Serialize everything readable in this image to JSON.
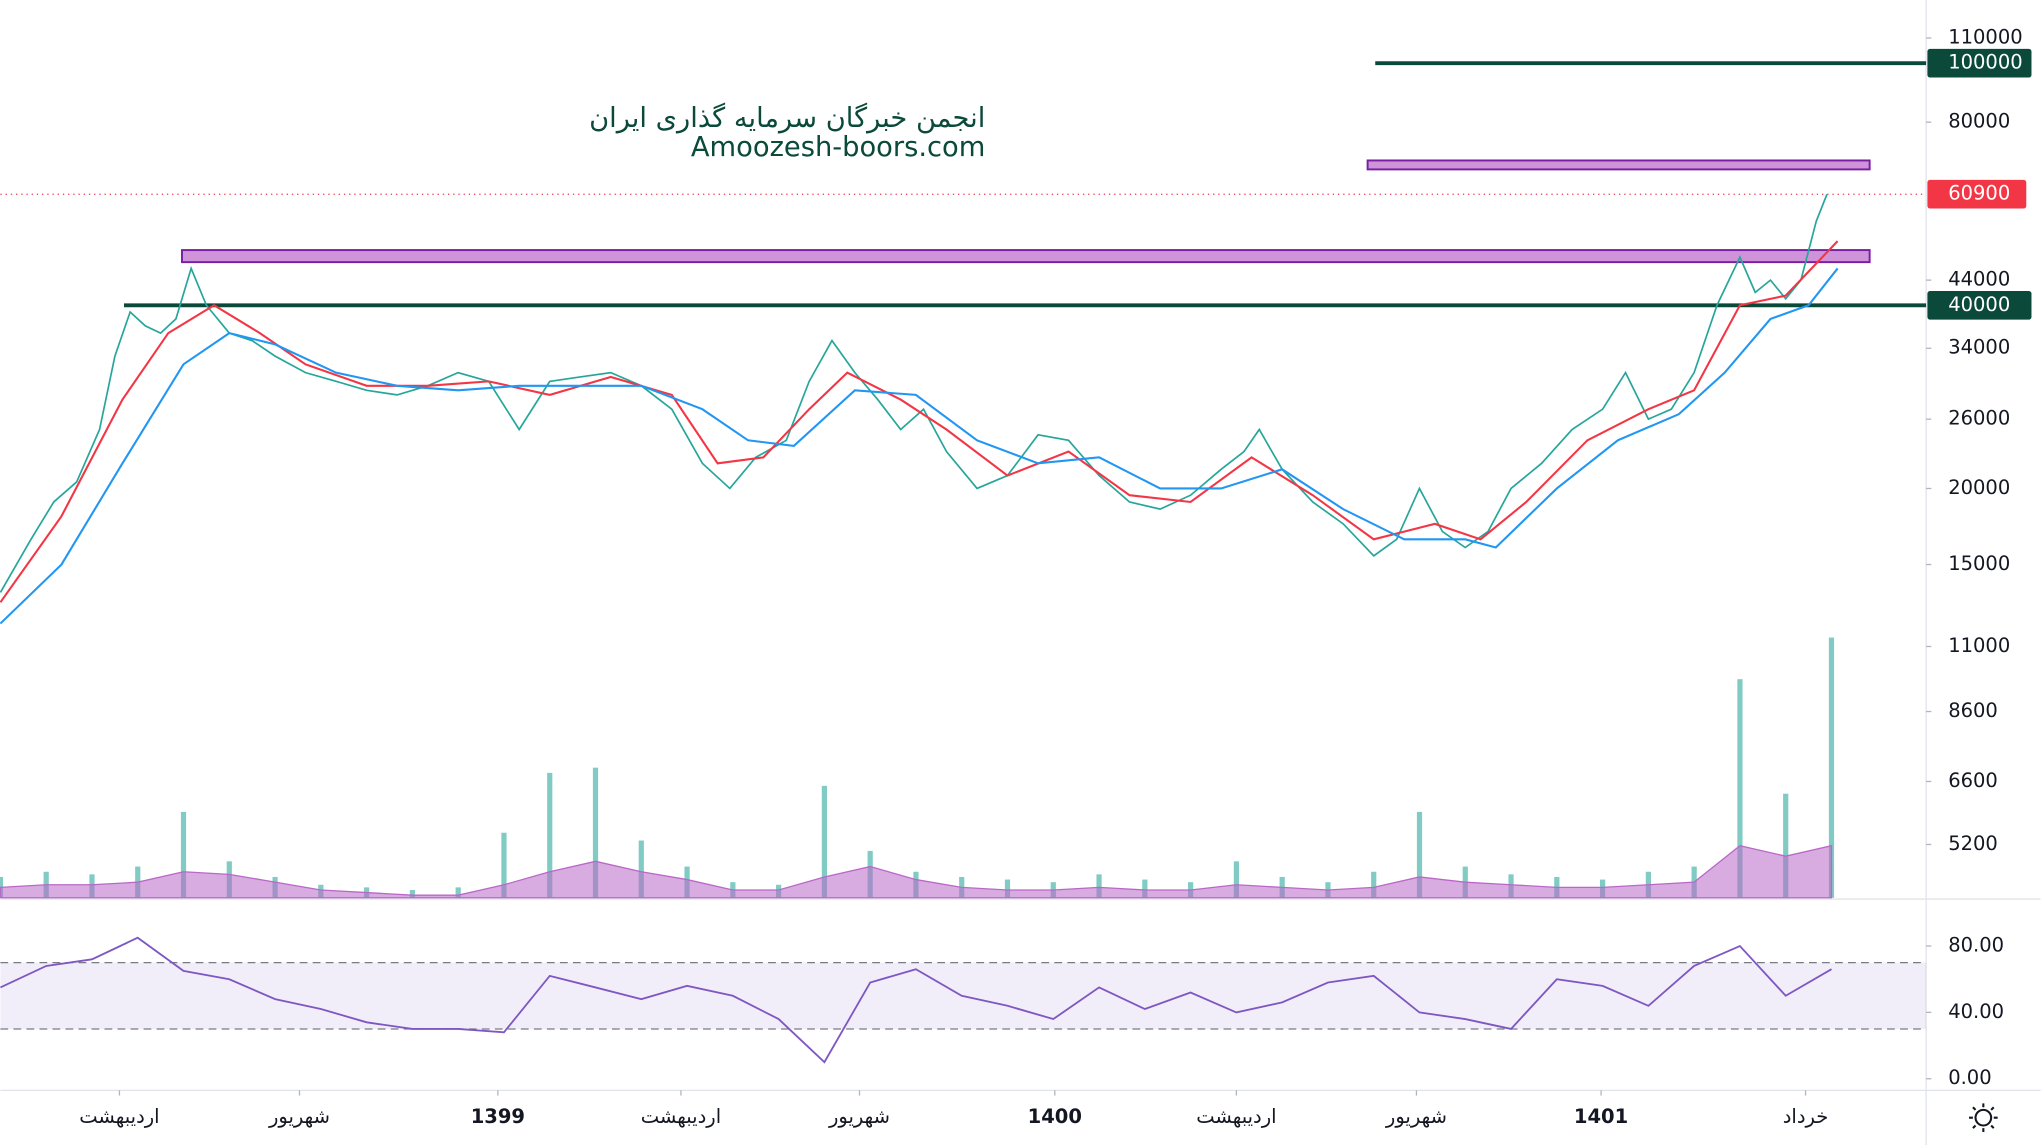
{
  "chart_data": [
    {
      "type": "line",
      "log_scale": true,
      "title": "انجمن خبرگان سرمایه گذاری ایران",
      "subtitle": "Amoozesh-boors.com",
      "xlim": [
        0,
        1262
      ],
      "xticks": [
        {
          "value": 78,
          "label": "اردیبهشت"
        },
        {
          "value": 196,
          "label": "شهریور"
        },
        {
          "value": 326,
          "label": "1399"
        },
        {
          "value": 446,
          "label": "اردیبهشت"
        },
        {
          "value": 563,
          "label": "شهریور"
        },
        {
          "value": 691,
          "label": "1400"
        },
        {
          "value": 810,
          "label": "اردیبهشت"
        },
        {
          "value": 928,
          "label": "شهریور"
        },
        {
          "value": 1049,
          "label": "1401"
        },
        {
          "value": 1183,
          "label": "خرداد"
        }
      ],
      "ylim": [
        4250,
        127000
      ],
      "yticks": [
        110000,
        80000,
        44000,
        34000,
        26000,
        20000,
        15000,
        11000,
        8600,
        6600,
        5200
      ],
      "series": [
        {
          "color": "#26a69a",
          "x": [
            0,
            20,
            35,
            50,
            65,
            75,
            85,
            95,
            105,
            115,
            125,
            135,
            150,
            165,
            180,
            200,
            220,
            240,
            260,
            280,
            300,
            320,
            340,
            360,
            380,
            400,
            420,
            440,
            460,
            478,
            495,
            515,
            530,
            545,
            560,
            575,
            590,
            605,
            620,
            640,
            660,
            680,
            700,
            720,
            740,
            760,
            780,
            800,
            815,
            825,
            840,
            860,
            880,
            900,
            915,
            930,
            945,
            960,
            975,
            990,
            1010,
            1030,
            1050,
            1065,
            1080,
            1095,
            1110,
            1125,
            1140,
            1150,
            1160,
            1170,
            1180,
            1190,
            1197
          ],
          "values": [
            13500,
            16500,
            19000,
            20500,
            25000,
            33000,
            39000,
            37000,
            36000,
            38000,
            46000,
            40000,
            36000,
            35000,
            33000,
            31000,
            30000,
            29000,
            28500,
            29500,
            31000,
            30000,
            25000,
            30000,
            30500,
            31000,
            29500,
            27000,
            22000,
            20000,
            22500,
            24000,
            30000,
            35000,
            31000,
            28000,
            25000,
            27000,
            23000,
            20000,
            21000,
            24500,
            24000,
            21000,
            19000,
            18500,
            19500,
            21500,
            23000,
            25000,
            21500,
            19000,
            17500,
            15500,
            16500,
            20000,
            17000,
            16000,
            17000,
            20000,
            22000,
            25000,
            27000,
            31000,
            26000,
            27000,
            31000,
            40000,
            48000,
            42000,
            44000,
            41000,
            44000,
            55000,
            60900
          ]
        },
        {
          "color": "#f23645",
          "x": [
            0,
            40,
            80,
            110,
            140,
            170,
            200,
            240,
            280,
            320,
            360,
            400,
            440,
            470,
            500,
            530,
            555,
            590,
            620,
            660,
            700,
            740,
            780,
            820,
            860,
            900,
            940,
            970,
            1000,
            1040,
            1080,
            1110,
            1140,
            1170,
            1204
          ],
          "values": [
            13000,
            18000,
            28000,
            36000,
            40000,
            36000,
            32000,
            29500,
            29500,
            30000,
            28500,
            30500,
            28500,
            22000,
            22500,
            27000,
            31000,
            28000,
            25000,
            21000,
            23000,
            19500,
            19000,
            22500,
            19500,
            16500,
            17500,
            16500,
            19000,
            24000,
            27000,
            29000,
            40000,
            41500,
            51000
          ]
        },
        {
          "color": "#2196f3",
          "x": [
            0,
            40,
            80,
            120,
            150,
            180,
            220,
            260,
            300,
            340,
            380,
            420,
            460,
            490,
            520,
            560,
            600,
            640,
            680,
            720,
            760,
            800,
            840,
            880,
            920,
            960,
            980,
            1020,
            1060,
            1100,
            1130,
            1160,
            1185,
            1204
          ],
          "values": [
            12000,
            15000,
            22000,
            32000,
            36000,
            34500,
            31000,
            29500,
            29000,
            29500,
            29500,
            29500,
            27000,
            24000,
            23500,
            29000,
            28500,
            24000,
            22000,
            22500,
            20000,
            20000,
            21500,
            18500,
            16500,
            16500,
            16000,
            20000,
            24000,
            26500,
            31000,
            38000,
            40000,
            46000
          ]
        }
      ],
      "hlines": [
        {
          "value": 100000,
          "x_start": 901,
          "color": "#0b4a3b"
        },
        {
          "value": 40000,
          "x_start": 81,
          "color": "#0b4a3b"
        }
      ],
      "zones": [
        {
          "low": 66900,
          "high": 69200,
          "x": [
            896,
            1225
          ],
          "color": "#ce93d8"
        },
        {
          "low": 47100,
          "high": 49300,
          "x": [
            119,
            1225
          ],
          "color": "#ce93d8"
        }
      ],
      "last_price": {
        "value": 60900,
        "color": "#f23645"
      }
    },
    {
      "type": "bar",
      "ylim": [
        0,
        100
      ],
      "x": [
        0,
        30,
        60,
        90,
        120,
        150,
        180,
        210,
        240,
        270,
        300,
        330,
        360,
        390,
        420,
        450,
        480,
        510,
        540,
        570,
        600,
        630,
        660,
        690,
        720,
        750,
        780,
        810,
        840,
        870,
        900,
        930,
        960,
        990,
        1020,
        1050,
        1080,
        1110,
        1140,
        1170,
        1200
      ],
      "values": [
        8,
        10,
        9,
        12,
        33,
        14,
        8,
        5,
        4,
        3,
        4,
        25,
        48,
        50,
        22,
        12,
        6,
        5,
        43,
        18,
        10,
        8,
        7,
        6,
        9,
        7,
        6,
        14,
        8,
        6,
        10,
        33,
        12,
        9,
        8,
        7,
        10,
        12,
        84,
        40,
        100
      ],
      "color": "#80cbc4",
      "ma": [
        4,
        5,
        5,
        6,
        10,
        9,
        6,
        3,
        2,
        1,
        1,
        5,
        10,
        14,
        10,
        7,
        3,
        3,
        8,
        12,
        7,
        4,
        3,
        3,
        4,
        3,
        3,
        5,
        4,
        3,
        4,
        8,
        6,
        5,
        4,
        4,
        5,
        6,
        20,
        16,
        20
      ],
      "ma_color": "#ba68c8"
    },
    {
      "type": "line",
      "ylim": [
        -7,
        107.5
      ],
      "yticks": [
        {
          "value": 80,
          "label": "80.00"
        },
        {
          "value": 40,
          "label": "40.00"
        },
        {
          "value": 0,
          "label": "0.00"
        }
      ],
      "bands": [
        30,
        70
      ],
      "x": [
        0,
        30,
        60,
        90,
        120,
        150,
        180,
        210,
        240,
        270,
        300,
        330,
        360,
        390,
        420,
        450,
        480,
        510,
        540,
        570,
        600,
        630,
        660,
        690,
        720,
        750,
        780,
        810,
        840,
        870,
        900,
        930,
        960,
        990,
        1020,
        1050,
        1080,
        1110,
        1140,
        1170,
        1200
      ],
      "values": [
        55,
        68,
        72,
        85,
        65,
        60,
        48,
        42,
        34,
        30,
        30,
        28,
        62,
        55,
        48,
        56,
        50,
        36,
        10,
        58,
        66,
        50,
        44,
        36,
        55,
        42,
        52,
        40,
        46,
        58,
        62,
        40,
        36,
        30,
        60,
        56,
        44,
        68,
        80,
        50,
        66
      ],
      "color": "#7e57c2"
    }
  ]
}
